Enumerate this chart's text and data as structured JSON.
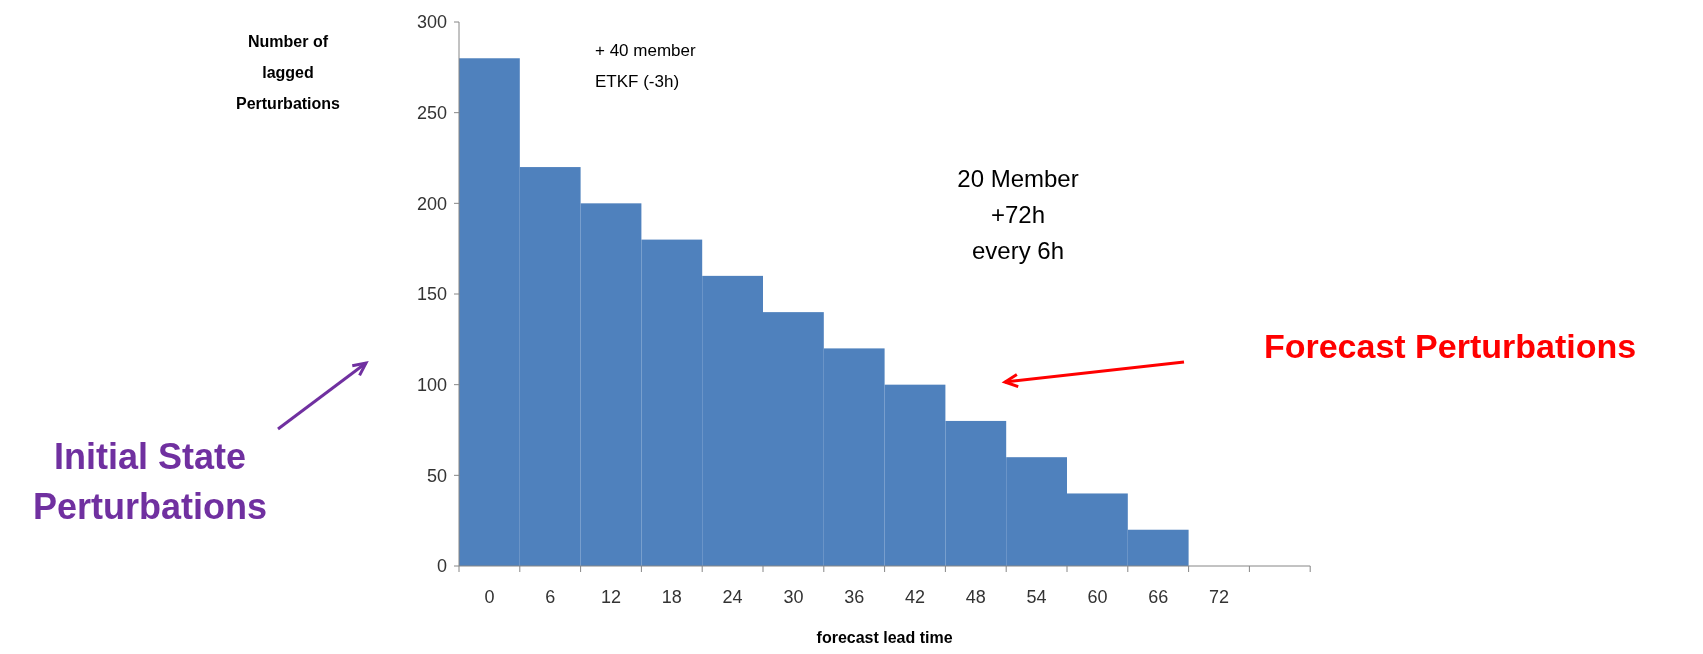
{
  "chart_data": {
    "type": "bar",
    "ylabel": "Number of\nlagged\nPerturbations",
    "xlabel": "forecast lead time",
    "categories": [
      "0",
      "6",
      "12",
      "18",
      "24",
      "30",
      "36",
      "42",
      "48",
      "54",
      "60",
      "66",
      "72",
      null
    ],
    "values": [
      280,
      220,
      200,
      180,
      160,
      140,
      120,
      100,
      80,
      60,
      40,
      20,
      null,
      null
    ],
    "color": "#4f81bd",
    "ylim": [
      0,
      300
    ],
    "yticks": [
      0,
      50,
      100,
      150,
      200,
      250,
      300
    ],
    "grid": false,
    "annotations": [
      "+ 40 member\nETKF (-3h)",
      "20 Member\n+72h\nevery 6h",
      "Forecast Perturbations",
      "Initial State\nPerturbations"
    ]
  }
}
